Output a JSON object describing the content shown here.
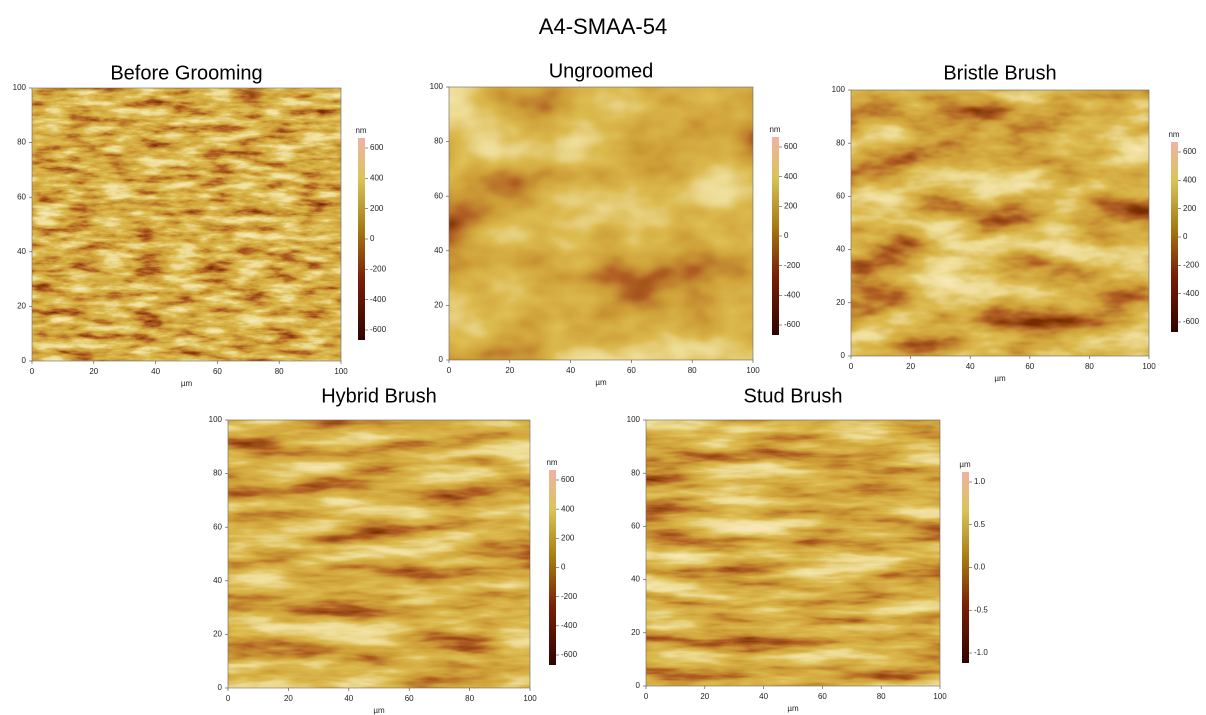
{
  "title": "A4-SMAA-54",
  "panels": [
    {
      "title": "Before Grooming",
      "x_label": "µm",
      "xticks": [
        0,
        20,
        40,
        60,
        80,
        100
      ],
      "yticks": [
        0,
        20,
        40,
        60,
        80,
        100
      ],
      "colorbar_unit": "nm",
      "colorbar_ticks": [
        600,
        400,
        200,
        0,
        -200,
        -400,
        -600
      ]
    },
    {
      "title": "Ungroomed",
      "x_label": "µm",
      "xticks": [
        0,
        20,
        40,
        60,
        80,
        100
      ],
      "yticks": [
        0,
        20,
        40,
        60,
        80,
        100
      ],
      "colorbar_unit": "nm",
      "colorbar_ticks": [
        600,
        400,
        200,
        0,
        -200,
        -400,
        -600
      ]
    },
    {
      "title": "Bristle Brush",
      "x_label": "µm",
      "xticks": [
        0,
        20,
        40,
        60,
        80,
        100
      ],
      "yticks": [
        0,
        20,
        40,
        60,
        80,
        100
      ],
      "colorbar_unit": "nm",
      "colorbar_ticks": [
        600,
        400,
        200,
        0,
        -200,
        -400,
        -600
      ]
    },
    {
      "title": "Hybrid Brush",
      "x_label": "µm",
      "xticks": [
        0,
        20,
        40,
        60,
        80,
        100
      ],
      "yticks": [
        0,
        20,
        40,
        60,
        80,
        100
      ],
      "colorbar_unit": "nm",
      "colorbar_ticks": [
        600,
        400,
        200,
        0,
        -200,
        -400,
        -600
      ]
    },
    {
      "title": "Stud Brush",
      "x_label": "µm",
      "xticks": [
        0,
        20,
        40,
        60,
        80,
        100
      ],
      "yticks": [
        0,
        20,
        40,
        60,
        80,
        100
      ],
      "colorbar_unit": "µm",
      "colorbar_ticks": [
        {
          "value": 1,
          "label": "1.0"
        },
        0.5,
        {
          "value": 0,
          "label": "0.0"
        },
        -0.5,
        {
          "value": -1,
          "label": "-1.0"
        }
      ]
    }
  ]
}
